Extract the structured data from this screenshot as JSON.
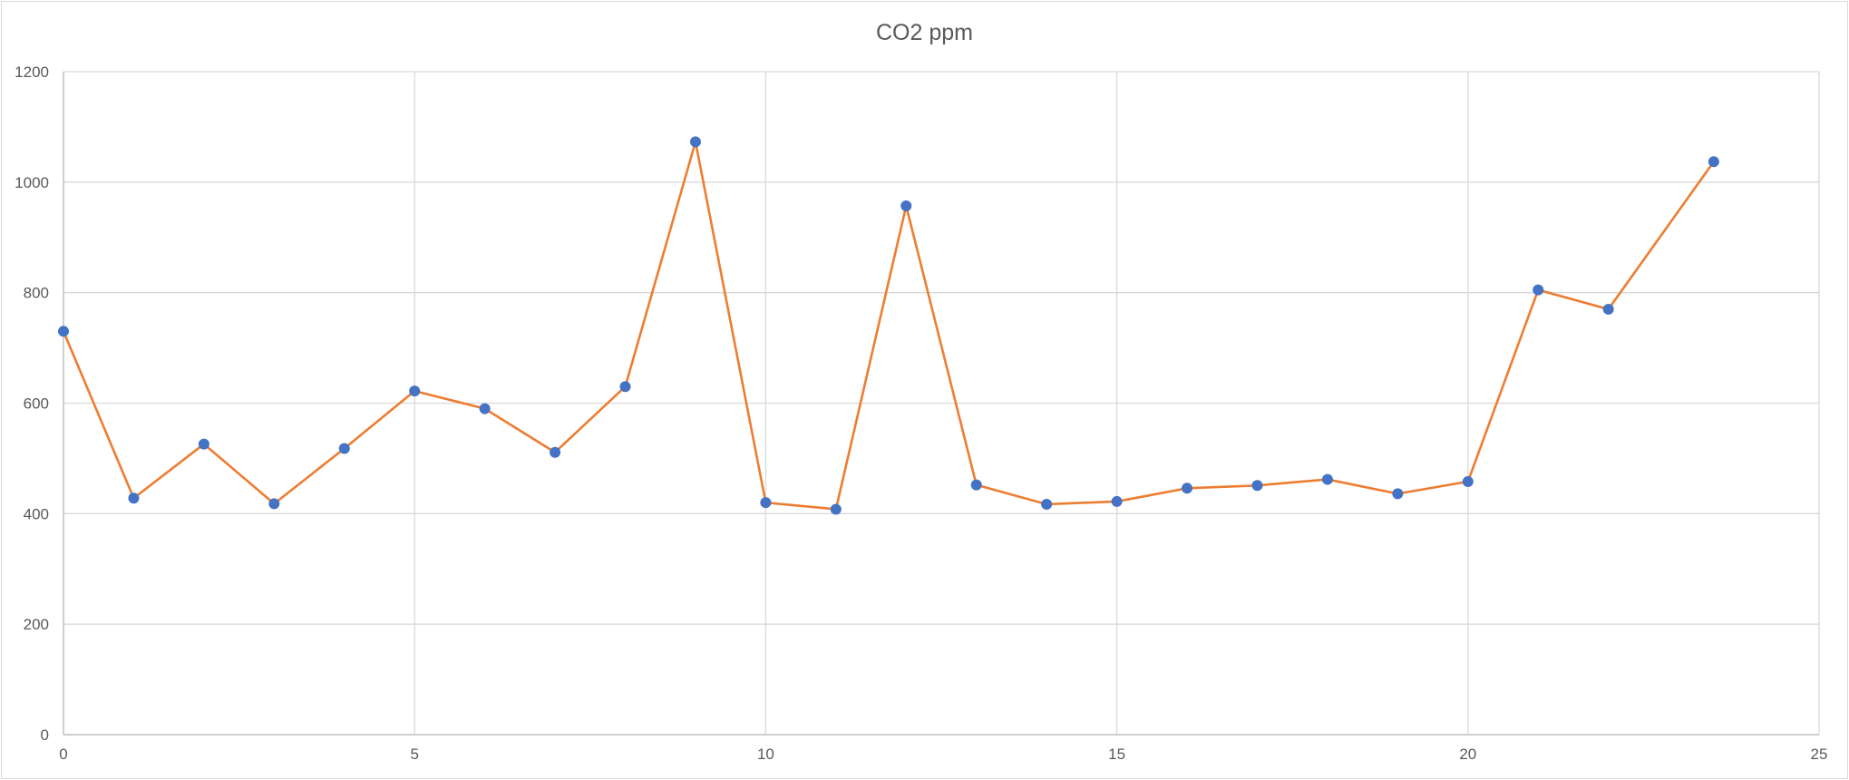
{
  "chart_data": {
    "type": "scatter",
    "title": "CO2 ppm",
    "xlabel": "",
    "ylabel": "",
    "xlim": [
      0,
      25
    ],
    "ylim": [
      0,
      1200
    ],
    "x_ticks": [
      0,
      5,
      10,
      15,
      20,
      25
    ],
    "y_ticks": [
      0,
      200,
      400,
      600,
      800,
      1000,
      1200
    ],
    "grid": "on",
    "legend": "none",
    "series": [
      {
        "line_color": "#ed7d31",
        "marker_color": "#4472c4",
        "x": [
          0,
          1,
          2,
          3,
          4,
          5,
          6,
          7,
          8,
          9,
          10,
          11,
          12,
          13,
          14,
          15,
          16,
          17,
          18,
          19,
          20,
          21,
          22,
          23.5
        ],
        "y": [
          730,
          428,
          526,
          418,
          518,
          622,
          590,
          511,
          630,
          1073,
          420,
          408,
          957,
          452,
          417,
          422,
          446,
          451,
          462,
          436,
          458,
          805,
          770,
          1037
        ]
      }
    ]
  }
}
